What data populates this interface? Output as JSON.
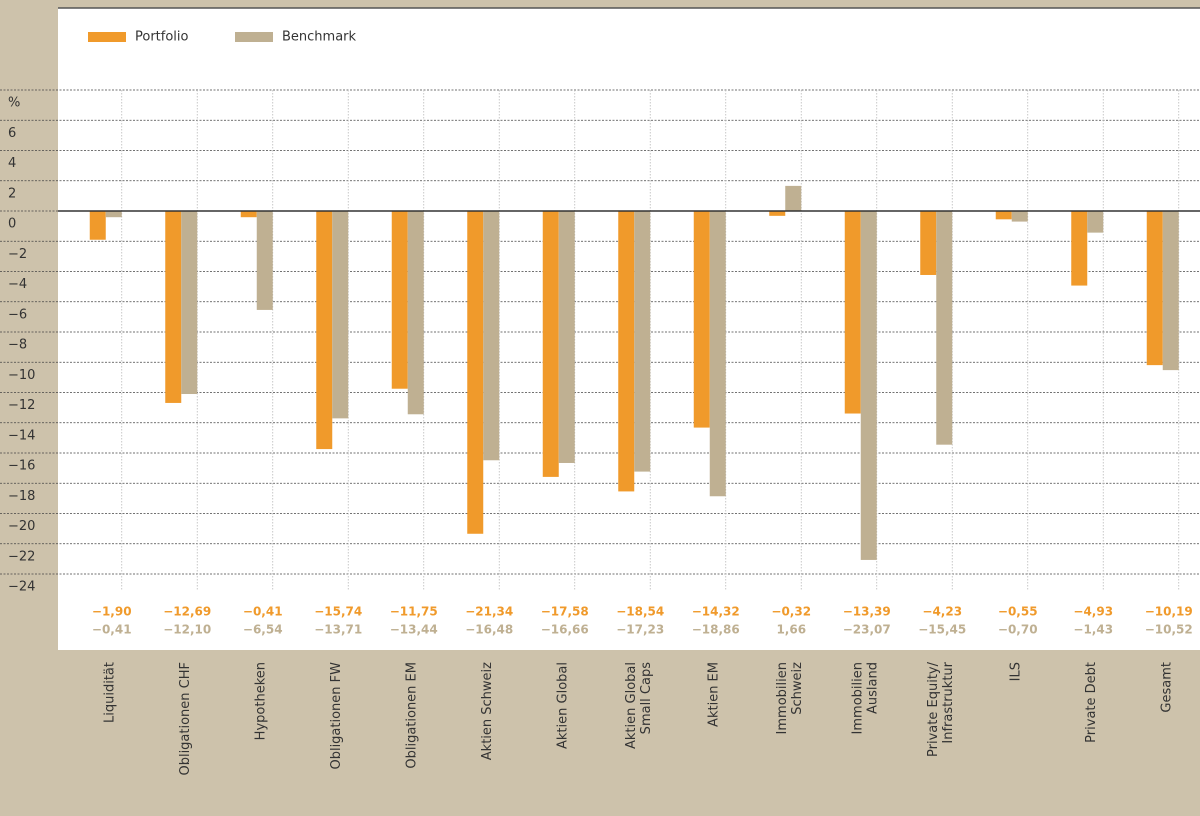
{
  "chart_data": {
    "type": "bar",
    "y_label": "%",
    "categories": [
      "Liquidität",
      "Obligationen CHF",
      "Hypotheken",
      "Obligationen FW",
      "Obligationen EM",
      "Aktien Schweiz",
      "Aktien Global",
      "Aktien Global\nSmall Caps",
      "Aktien EM",
      "Immobilien\nSchweiz",
      "Immobilien\nAusland",
      "Private Equity/\nInfrastruktur",
      "ILS",
      "Private Debt",
      "Gesamt"
    ],
    "series": [
      {
        "name": "Portfolio",
        "color": "#f09a2b",
        "values": [
          -1.9,
          -12.69,
          -0.41,
          -15.74,
          -11.75,
          -21.34,
          -17.58,
          -18.54,
          -14.32,
          -0.32,
          -13.39,
          -4.23,
          -0.55,
          -4.93,
          -10.19
        ],
        "value_labels": [
          "−1,90",
          "−12,69",
          "−0,41",
          "−15,74",
          "−11,75",
          "−21,34",
          "−17,58",
          "−18,54",
          "−14,32",
          "−0,32",
          "−13,39",
          "−4,23",
          "−0,55",
          "−4,93",
          "−10,19"
        ]
      },
      {
        "name": "Benchmark",
        "color": "#bfb092",
        "values": [
          -0.41,
          -12.1,
          -6.54,
          -13.71,
          -13.44,
          -16.48,
          -16.66,
          -17.23,
          -18.86,
          1.66,
          -23.07,
          -15.45,
          -0.7,
          -1.43,
          -10.52
        ],
        "value_labels": [
          "−0,41",
          "−12,10",
          "−6,54",
          "−13,71",
          "−13,44",
          "−16,48",
          "−16,66",
          "−17,23",
          "−18,86",
          "1,66",
          "−23,07",
          "−15,45",
          "−0,70",
          "−1,43",
          "−10,52"
        ]
      }
    ],
    "ylim": [
      -24,
      8
    ],
    "yticks": [
      6,
      4,
      2,
      0,
      {
        "value": -2,
        "label": "−2"
      },
      {
        "value": -4,
        "label": "−4"
      },
      {
        "value": -6,
        "label": "−6"
      },
      {
        "value": -8,
        "label": "−8"
      },
      {
        "value": -10,
        "label": "−10"
      },
      {
        "value": -12,
        "label": "−12"
      },
      {
        "value": -14,
        "label": "−14"
      },
      {
        "value": -16,
        "label": "−16"
      },
      {
        "value": -18,
        "label": "−18"
      },
      {
        "value": -20,
        "label": "−20"
      },
      {
        "value": -22,
        "label": "−22"
      },
      {
        "value": -24,
        "label": "−24"
      }
    ],
    "grid": true
  }
}
